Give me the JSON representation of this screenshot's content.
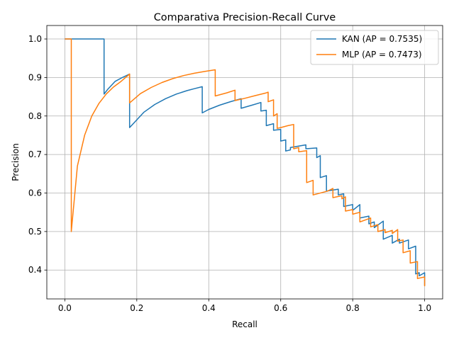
{
  "chart_data": {
    "type": "line",
    "title": "Comparativa Precision-Recall Curve",
    "xlabel": "Recall",
    "ylabel": "Precision",
    "xlim": [
      -0.05,
      1.05
    ],
    "ylim": [
      0.325,
      1.035
    ],
    "xticks": [
      0.0,
      0.2,
      0.4,
      0.6,
      0.8,
      1.0
    ],
    "xtick_labels": [
      "0.0",
      "0.2",
      "0.4",
      "0.6",
      "0.8",
      "1.0"
    ],
    "yticks": [
      0.4,
      0.5,
      0.6,
      0.7,
      0.8,
      0.9,
      1.0
    ],
    "ytick_labels": [
      "0.4",
      "0.5",
      "0.6",
      "0.7",
      "0.8",
      "0.9",
      "1.0"
    ],
    "grid": true,
    "legend_position": "top-right",
    "series": [
      {
        "name": "KAN (AP = 0.7535)",
        "color": "#1f77b4",
        "x": [
          0.0,
          0.109,
          0.109,
          0.12,
          0.14,
          0.16,
          0.18,
          0.18,
          0.2,
          0.22,
          0.25,
          0.28,
          0.31,
          0.34,
          0.36,
          0.382,
          0.382,
          0.4,
          0.43,
          0.46,
          0.49,
          0.49,
          0.52,
          0.545,
          0.545,
          0.56,
          0.56,
          0.58,
          0.58,
          0.6,
          0.6,
          0.614,
          0.614,
          0.627,
          0.627,
          0.67,
          0.67,
          0.7,
          0.7,
          0.71,
          0.71,
          0.727,
          0.727,
          0.76,
          0.76,
          0.775,
          0.775,
          0.8,
          0.8,
          0.82,
          0.82,
          0.845,
          0.845,
          0.86,
          0.86,
          0.885,
          0.885,
          0.91,
          0.91,
          0.93,
          0.93,
          0.955,
          0.955,
          0.975,
          0.975,
          0.985,
          0.985,
          1.0,
          1.0
        ],
        "y": [
          1.0,
          1.0,
          0.857,
          0.87,
          0.89,
          0.9,
          0.909,
          0.77,
          0.79,
          0.81,
          0.83,
          0.845,
          0.857,
          0.866,
          0.871,
          0.876,
          0.808,
          0.817,
          0.828,
          0.837,
          0.845,
          0.82,
          0.828,
          0.835,
          0.813,
          0.815,
          0.775,
          0.78,
          0.763,
          0.765,
          0.735,
          0.738,
          0.709,
          0.712,
          0.718,
          0.725,
          0.715,
          0.717,
          0.692,
          0.697,
          0.64,
          0.645,
          0.605,
          0.61,
          0.595,
          0.598,
          0.565,
          0.57,
          0.555,
          0.57,
          0.535,
          0.54,
          0.52,
          0.525,
          0.51,
          0.527,
          0.48,
          0.49,
          0.47,
          0.48,
          0.47,
          0.478,
          0.455,
          0.462,
          0.39,
          0.393,
          0.385,
          0.393,
          0.36
        ]
      },
      {
        "name": "MLP (AP = 0.7473)",
        "color": "#ff7f0e",
        "x": [
          0.0,
          0.018,
          0.018,
          0.035,
          0.055,
          0.075,
          0.095,
          0.115,
          0.135,
          0.155,
          0.18,
          0.18,
          0.21,
          0.24,
          0.27,
          0.3,
          0.33,
          0.36,
          0.39,
          0.418,
          0.418,
          0.45,
          0.473,
          0.473,
          0.5,
          0.53,
          0.56,
          0.565,
          0.565,
          0.58,
          0.58,
          0.59,
          0.59,
          0.6,
          0.6,
          0.62,
          0.636,
          0.636,
          0.65,
          0.65,
          0.672,
          0.672,
          0.69,
          0.69,
          0.73,
          0.745,
          0.745,
          0.77,
          0.77,
          0.78,
          0.78,
          0.8,
          0.8,
          0.82,
          0.82,
          0.85,
          0.85,
          0.87,
          0.87,
          0.89,
          0.89,
          0.91,
          0.91,
          0.925,
          0.925,
          0.94,
          0.94,
          0.96,
          0.96,
          0.98,
          0.98,
          1.0,
          1.0
        ],
        "y": [
          1.0,
          1.0,
          0.5,
          0.67,
          0.75,
          0.8,
          0.833,
          0.857,
          0.875,
          0.889,
          0.909,
          0.834,
          0.858,
          0.874,
          0.887,
          0.897,
          0.905,
          0.911,
          0.916,
          0.92,
          0.852,
          0.86,
          0.867,
          0.84,
          0.846,
          0.853,
          0.86,
          0.862,
          0.837,
          0.842,
          0.8,
          0.806,
          0.768,
          0.77,
          0.77,
          0.775,
          0.778,
          0.715,
          0.718,
          0.707,
          0.71,
          0.627,
          0.633,
          0.595,
          0.605,
          0.612,
          0.588,
          0.593,
          0.585,
          0.59,
          0.553,
          0.557,
          0.545,
          0.55,
          0.525,
          0.535,
          0.512,
          0.518,
          0.5,
          0.505,
          0.497,
          0.503,
          0.495,
          0.505,
          0.475,
          0.478,
          0.445,
          0.45,
          0.418,
          0.422,
          0.378,
          0.382,
          0.358
        ]
      }
    ]
  }
}
